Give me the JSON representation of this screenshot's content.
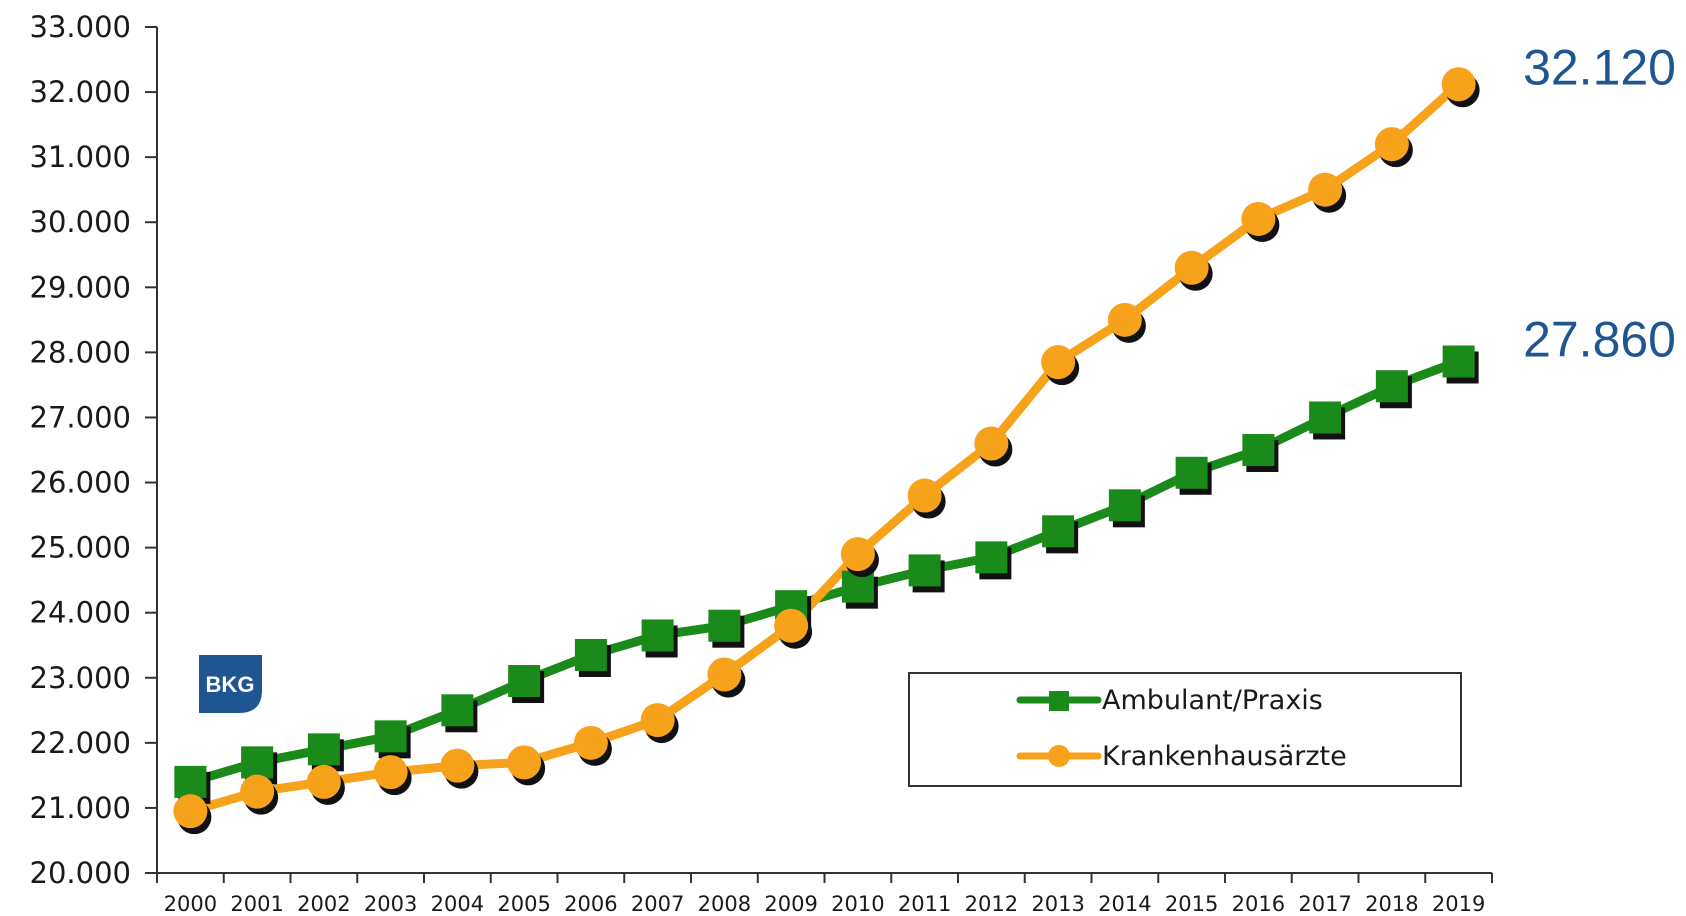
{
  "chart_data": {
    "type": "line",
    "x": [
      "2000",
      "2001",
      "2002",
      "2003",
      "2004",
      "2005",
      "2006",
      "2007",
      "2008",
      "2009",
      "2010",
      "2011",
      "2012",
      "2013",
      "2014",
      "2015",
      "2016",
      "2017",
      "2018",
      "2019"
    ],
    "ylim": [
      20000,
      33000
    ],
    "y_ticks": [
      "20.000",
      "21.000",
      "22.000",
      "23.000",
      "24.000",
      "25.000",
      "26.000",
      "27.000",
      "28.000",
      "29.000",
      "30.000",
      "31.000",
      "32.000",
      "33.000"
    ],
    "grid": false,
    "legend_position": "bottom-right",
    "series": [
      {
        "name": "Ambulant/Praxis",
        "color": "#1a8a1a",
        "marker": "square",
        "values": [
          21400,
          21700,
          21900,
          22100,
          22500,
          22950,
          23350,
          23650,
          23800,
          24100,
          24400,
          24650,
          24850,
          25250,
          25650,
          26150,
          26500,
          27000,
          27480,
          27860
        ],
        "end_label": "27.860"
      },
      {
        "name": "Krankenhausärzte",
        "color": "#f7a21b",
        "marker": "circle",
        "values": [
          20950,
          21250,
          21400,
          21550,
          21650,
          21700,
          22000,
          22350,
          23050,
          23800,
          24900,
          25800,
          26600,
          27850,
          28500,
          29300,
          30050,
          30500,
          31200,
          32120
        ],
        "end_label": "32.120"
      }
    ],
    "end_label_color": "#1f5590"
  },
  "logo": {
    "text": "BKG",
    "color": "#1f5590"
  }
}
